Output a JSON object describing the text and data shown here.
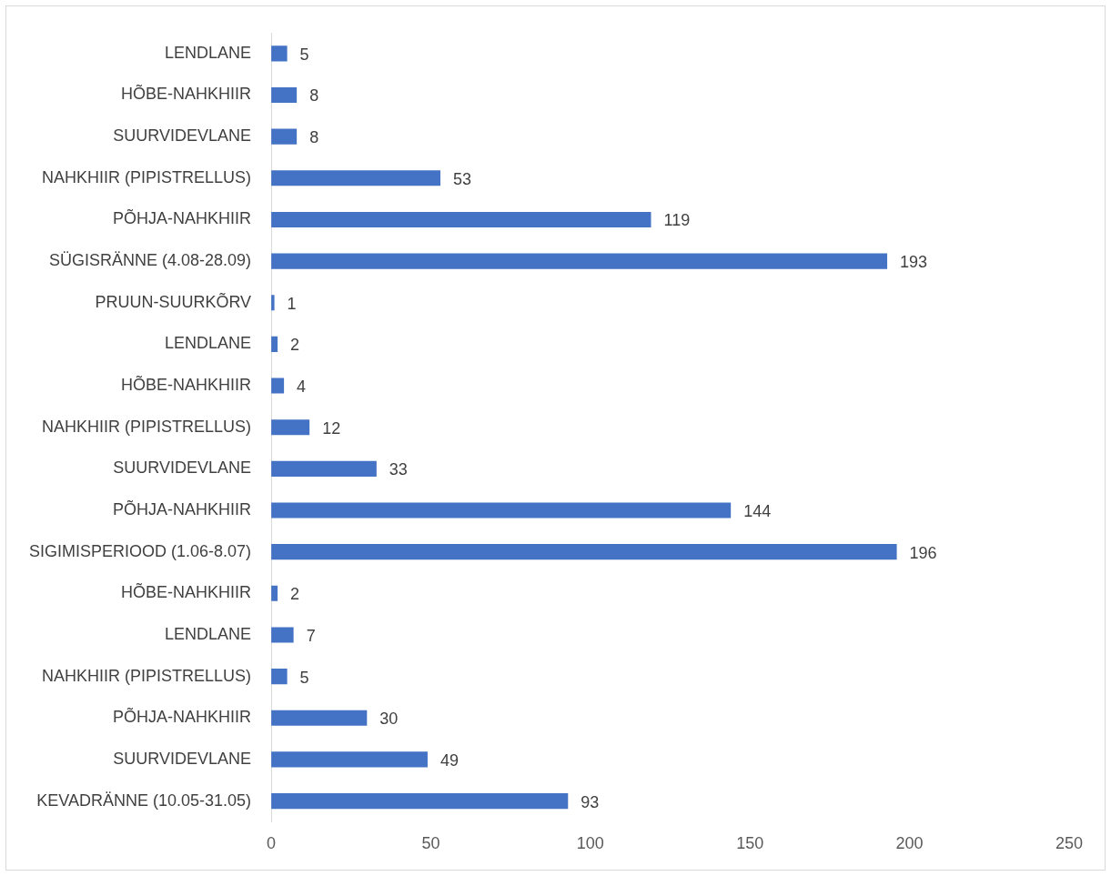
{
  "chart_data": {
    "type": "bar",
    "orientation": "horizontal",
    "categories": [
      "LENDLANE",
      "HÕBE-NAHKHIIR",
      "SUURVIDEVLANE",
      "NAHKHIIR (PIPISTRELLUS)",
      "PÕHJA-NAHKHIIR",
      "SÜGISRÄNNE (4.08-28.09)",
      "PRUUN-SUURKÕRV",
      "LENDLANE",
      "HÕBE-NAHKHIIR",
      "NAHKHIIR (PIPISTRELLUS)",
      "SUURVIDEVLANE",
      "PÕHJA-NAHKHIIR",
      "SIGIMISPERIOOD (1.06-8.07)",
      "HÕBE-NAHKHIIR",
      "LENDLANE",
      "NAHKHIIR (PIPISTRELLUS)",
      "PÕHJA-NAHKHIIR",
      "SUURVIDEVLANE",
      "KEVADRÄNNE (10.05-31.05)"
    ],
    "values": [
      5,
      8,
      8,
      53,
      119,
      193,
      1,
      2,
      4,
      12,
      33,
      144,
      196,
      2,
      7,
      5,
      30,
      49,
      93
    ],
    "color": "#4472c4",
    "xlim": [
      0,
      250
    ],
    "xticks": [
      0,
      50,
      100,
      150,
      200,
      250
    ],
    "grid": false,
    "legend": false,
    "data_labels": true
  }
}
